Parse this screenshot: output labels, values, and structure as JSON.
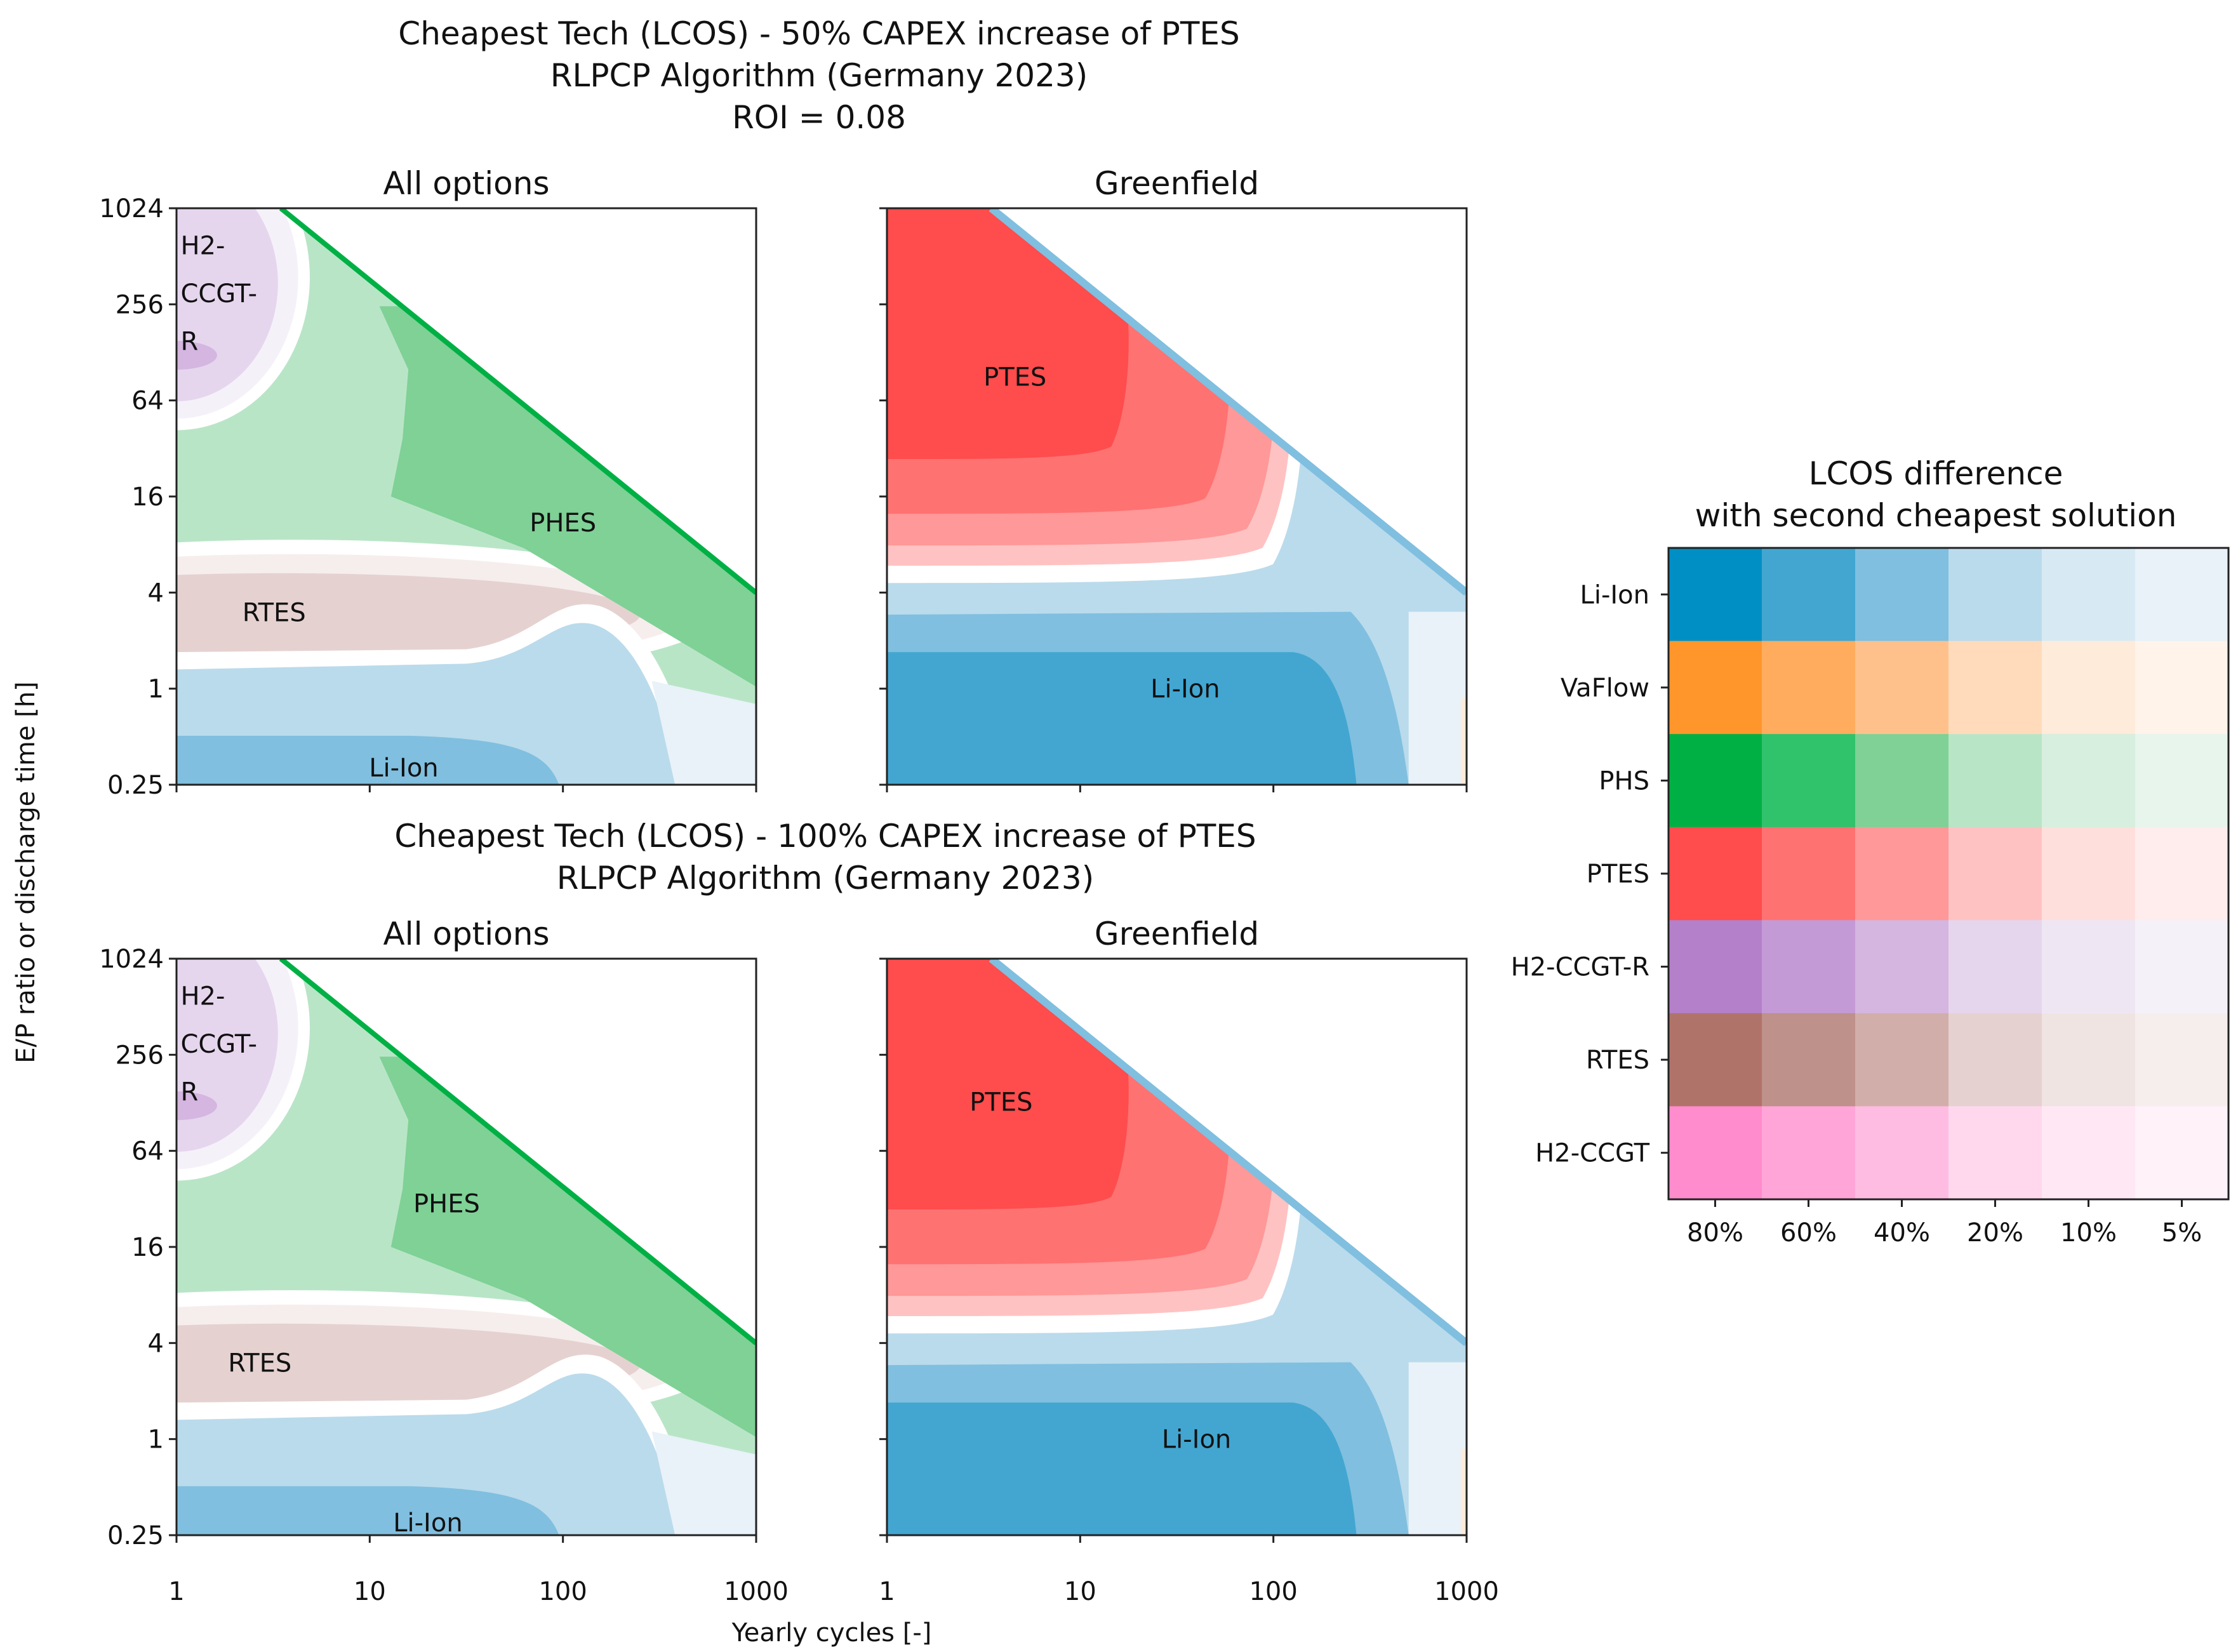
{
  "chart_data": {
    "type": "heatmap",
    "figure_titles": [
      [
        "Cheapest Tech (LCOS) - 50% CAPEX increase of PTES",
        "RLPCP Algorithm (Germany 2023)",
        "ROI = 0.08"
      ],
      [
        "Cheapest Tech (LCOS) - 100% CAPEX increase of PTES",
        "RLPCP Algorithm (Germany 2023)"
      ]
    ],
    "xlabel": "Yearly cycles [-]",
    "ylabel": "E/P ratio or discharge time [h]",
    "x_scale": "log10",
    "y_scale": "log2",
    "xlim": [
      1,
      1000
    ],
    "ylim": [
      0.25,
      1024
    ],
    "x_ticks": [
      {
        "value": 1,
        "label": "1"
      },
      {
        "value": 10,
        "label": "10"
      },
      {
        "value": 100,
        "label": "100"
      },
      {
        "value": 1000,
        "label": "1000"
      }
    ],
    "y_ticks": [
      {
        "value": 1024,
        "label": "1024"
      },
      {
        "value": 256,
        "label": "256"
      },
      {
        "value": 64,
        "label": "64"
      },
      {
        "value": 16,
        "label": "16"
      },
      {
        "value": 4,
        "label": "4"
      },
      {
        "value": 1,
        "label": "1"
      },
      {
        "value": 0.25,
        "label": "0.25"
      }
    ],
    "panels": [
      {
        "title": "All options",
        "kind": "all",
        "labels": [
          {
            "text": "H2-",
            "x": 1.05,
            "y": 600
          },
          {
            "text": "CCGT-",
            "x": 1.05,
            "y": 300
          },
          {
            "text": "R",
            "x": 1.05,
            "y": 150
          },
          {
            "text": "PHES",
            "x": 100,
            "y": 11
          },
          {
            "text": "RTES",
            "x": 3.2,
            "y": 3
          },
          {
            "text": "Li-Ion",
            "x": 15,
            "y": 0.32
          }
        ]
      },
      {
        "title": "Greenfield",
        "kind": "green",
        "labels": [
          {
            "text": "PTES",
            "x": 4.6,
            "y": 90
          },
          {
            "text": "Li-Ion",
            "x": 35,
            "y": 1
          }
        ]
      },
      {
        "title": "All options",
        "kind": "all",
        "labels": [
          {
            "text": "H2-",
            "x": 1.05,
            "y": 600
          },
          {
            "text": "CCGT-",
            "x": 1.05,
            "y": 300
          },
          {
            "text": "R",
            "x": 1.05,
            "y": 150
          },
          {
            "text": "PHES",
            "x": 25,
            "y": 30
          },
          {
            "text": "RTES",
            "x": 2.7,
            "y": 3
          },
          {
            "text": "Li-Ion",
            "x": 20,
            "y": 0.3
          }
        ]
      },
      {
        "title": "Greenfield",
        "kind": "green",
        "labels": [
          {
            "text": "PTES",
            "x": 3.9,
            "y": 130
          },
          {
            "text": "Li-Ion",
            "x": 40,
            "y": 1
          }
        ]
      }
    ],
    "legend": {
      "title": [
        "LCOS difference",
        "with second cheapest solution"
      ],
      "columns": [
        "80%",
        "60%",
        "40%",
        "20%",
        "10%",
        "5%"
      ],
      "rows": [
        {
          "name": "Li-Ion",
          "colors": [
            "#008fc5",
            "#42a6d1",
            "#80bfdf",
            "#badbec",
            "#d7eaf4",
            "#e8f2f8"
          ]
        },
        {
          "name": "VaFlow",
          "colors": [
            "#ff962b",
            "#ffac5e",
            "#ffc18c",
            "#ffdbbb",
            "#ffebda",
            "#fff3ea"
          ]
        },
        {
          "name": "PHS",
          "colors": [
            "#00b045",
            "#31c26c",
            "#7fd196",
            "#b9e5c7",
            "#d7efdf",
            "#e7f5ec"
          ]
        },
        {
          "name": "PTES",
          "colors": [
            "#ff4c4c",
            "#ff7272",
            "#ff9898",
            "#ffc2c2",
            "#ffdfdc",
            "#ffeded"
          ]
        },
        {
          "name": "H2-CCGT-R",
          "colors": [
            "#b380c9",
            "#c49ad6",
            "#d4b6e0",
            "#e5d6ee",
            "#efe6f4",
            "#f5f1f9"
          ]
        },
        {
          "name": "RTES",
          "colors": [
            "#b0736a",
            "#be918a",
            "#d2aeaa",
            "#e5d2d0",
            "#f0e4e2",
            "#f6eeed"
          ]
        },
        {
          "name": "H2-CCGT",
          "colors": [
            "#ff8ccc",
            "#ffa5d7",
            "#ffbce2",
            "#ffd8ee",
            "#ffe8f4",
            "#fff2f9"
          ]
        }
      ]
    }
  }
}
